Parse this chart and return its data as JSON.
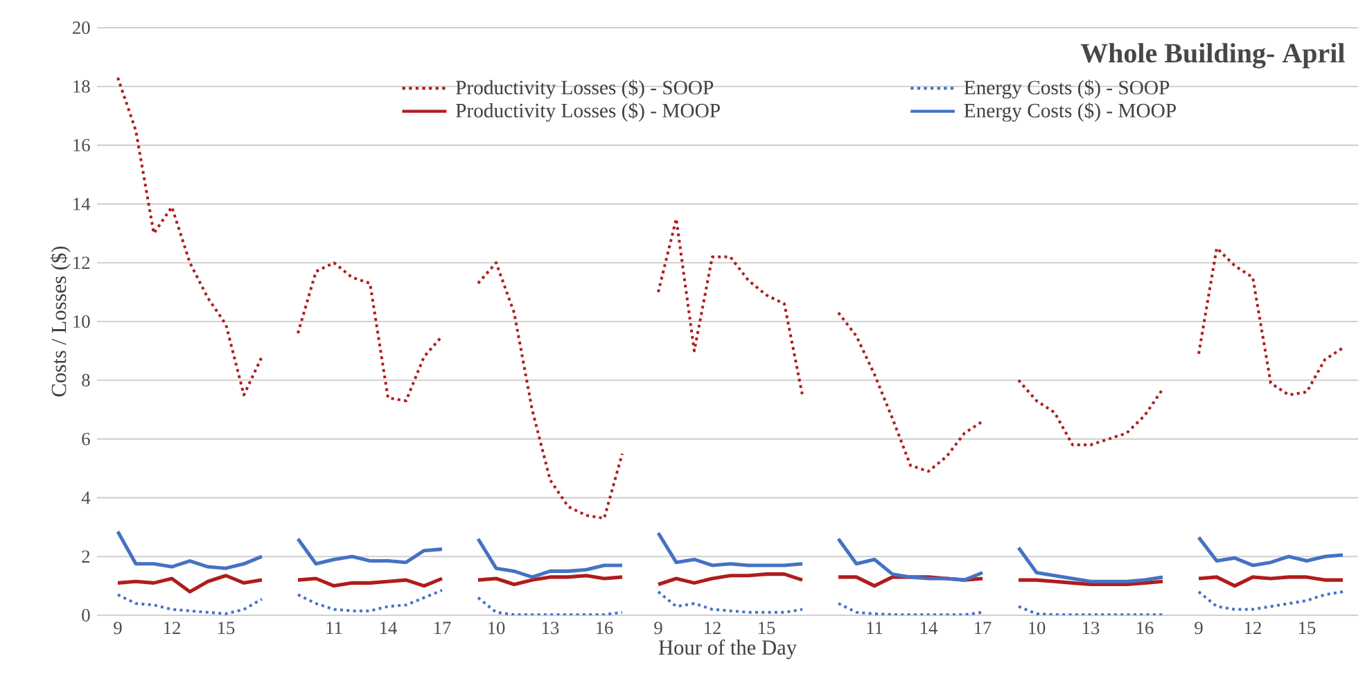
{
  "chart_data": {
    "type": "line",
    "title": "Whole Building- April",
    "xlabel": "Hour of the Day",
    "ylabel": "Costs / Losses ($)",
    "categories": [
      "9",
      null,
      null,
      "12",
      null,
      null,
      "15",
      null,
      null,
      null,
      null,
      null,
      "11",
      null,
      null,
      "14",
      null,
      null,
      "17",
      null,
      null,
      "10",
      null,
      null,
      "13",
      null,
      null,
      "16",
      null,
      null,
      "9",
      null,
      null,
      "12",
      null,
      null,
      "15",
      null,
      null,
      null,
      null,
      null,
      "11",
      null,
      null,
      "14",
      null,
      null,
      "17",
      null,
      null,
      "10",
      null,
      null,
      "13",
      null,
      null,
      "16",
      null,
      null,
      "9",
      null,
      null,
      "12",
      null,
      null,
      "15",
      null,
      null
    ],
    "series": [
      {
        "name": "Productivity Losses ($) - SOOP",
        "color": "#b01c1c",
        "line_style": "dotted",
        "values": [
          18.3,
          16.5,
          13.0,
          13.9,
          12.0,
          10.8,
          9.9,
          7.5,
          8.8,
          null,
          9.6,
          11.7,
          12.0,
          11.5,
          11.3,
          7.4,
          7.3,
          8.8,
          9.5,
          null,
          11.3,
          12.0,
          10.3,
          7.0,
          4.6,
          3.7,
          3.4,
          3.3,
          5.5,
          null,
          11.0,
          13.5,
          9.0,
          12.2,
          12.2,
          11.4,
          10.9,
          10.6,
          7.5,
          null,
          10.3,
          9.5,
          8.2,
          6.7,
          5.1,
          4.9,
          5.4,
          6.2,
          6.6,
          null,
          8.0,
          7.3,
          6.9,
          5.8,
          5.8,
          6.0,
          6.2,
          6.8,
          7.7,
          null,
          8.9,
          12.5,
          11.9,
          11.5,
          7.9,
          7.5,
          7.6,
          8.7,
          9.1
        ]
      },
      {
        "name": "Energy Costs ($) - SOOP",
        "color": "#4472c4",
        "line_style": "dotted",
        "values": [
          0.7,
          0.4,
          0.35,
          0.2,
          0.15,
          0.1,
          0.05,
          0.2,
          0.55,
          null,
          0.7,
          0.4,
          0.2,
          0.15,
          0.15,
          0.3,
          0.35,
          0.6,
          0.85,
          null,
          0.6,
          0.1,
          0.02,
          0.02,
          0.02,
          0.02,
          0.02,
          0.02,
          0.1,
          null,
          0.8,
          0.3,
          0.4,
          0.2,
          0.15,
          0.1,
          0.1,
          0.1,
          0.2,
          null,
          0.4,
          0.1,
          0.05,
          0.02,
          0.02,
          0.02,
          0.02,
          0.02,
          0.1,
          null,
          0.3,
          0.05,
          0.02,
          0.02,
          0.02,
          0.02,
          0.02,
          0.02,
          0.02,
          null,
          0.8,
          0.3,
          0.2,
          0.2,
          0.3,
          0.4,
          0.5,
          0.7,
          0.8
        ]
      },
      {
        "name": "Productivity Losses ($) - MOOP",
        "color": "#b01c1c",
        "line_style": "solid",
        "values": [
          1.1,
          1.15,
          1.1,
          1.25,
          0.8,
          1.15,
          1.35,
          1.1,
          1.2,
          null,
          1.2,
          1.25,
          1.0,
          1.1,
          1.1,
          1.15,
          1.2,
          1.0,
          1.25,
          null,
          1.2,
          1.25,
          1.05,
          1.2,
          1.3,
          1.3,
          1.35,
          1.25,
          1.3,
          null,
          1.05,
          1.25,
          1.1,
          1.25,
          1.35,
          1.35,
          1.4,
          1.4,
          1.2,
          null,
          1.3,
          1.3,
          1.0,
          1.3,
          1.3,
          1.3,
          1.25,
          1.2,
          1.25,
          null,
          1.2,
          1.2,
          1.15,
          1.1,
          1.05,
          1.05,
          1.05,
          1.1,
          1.15,
          null,
          1.25,
          1.3,
          1.0,
          1.3,
          1.25,
          1.3,
          1.3,
          1.2,
          1.2
        ]
      },
      {
        "name": "Energy Costs ($) - MOOP",
        "color": "#4472c4",
        "line_style": "solid",
        "values": [
          2.85,
          1.75,
          1.75,
          1.65,
          1.85,
          1.65,
          1.6,
          1.75,
          2.0,
          null,
          2.6,
          1.75,
          1.9,
          2.0,
          1.85,
          1.85,
          1.8,
          2.2,
          2.25,
          null,
          2.6,
          1.6,
          1.5,
          1.3,
          1.5,
          1.5,
          1.55,
          1.7,
          1.7,
          null,
          2.8,
          1.8,
          1.9,
          1.7,
          1.75,
          1.7,
          1.7,
          1.7,
          1.75,
          null,
          2.6,
          1.75,
          1.9,
          1.4,
          1.3,
          1.25,
          1.25,
          1.2,
          1.45,
          null,
          2.3,
          1.45,
          1.35,
          1.25,
          1.15,
          1.15,
          1.15,
          1.2,
          1.3,
          null,
          2.65,
          1.85,
          1.95,
          1.7,
          1.8,
          2.0,
          1.85,
          2.0,
          2.05
        ]
      }
    ],
    "ylim": [
      0,
      20
    ],
    "yticks": [
      0,
      2,
      4,
      6,
      8,
      10,
      12,
      14,
      16,
      18,
      20
    ],
    "grid": "y",
    "legend": "top",
    "marker": "none"
  }
}
